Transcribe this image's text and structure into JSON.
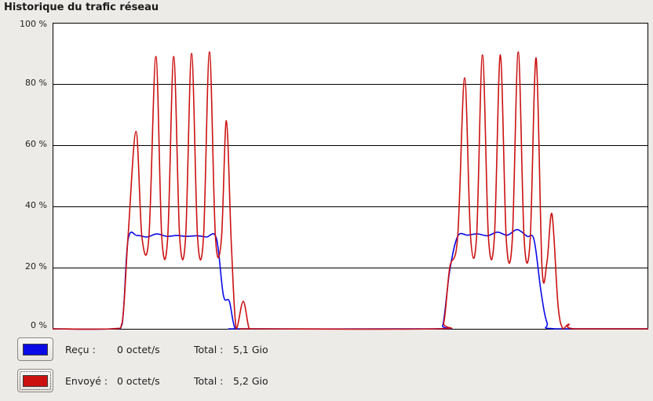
{
  "section_title": "Historique du trafic réseau",
  "colors": {
    "received": "#0a0ae6",
    "sent": "#cc1111",
    "plot_bg": "#ffffff",
    "grid": "#000000"
  },
  "chart_data": {
    "type": "line",
    "title": "",
    "xlabel": "",
    "ylabel": "",
    "ylim": [
      0,
      100
    ],
    "y_ticks": [
      "100 %",
      "80 %",
      "60 %",
      "40 %",
      "20 %",
      "0 %"
    ],
    "x_range": [
      0,
      60
    ],
    "series": [
      {
        "name": "Reçu",
        "color": "#0a0ae6",
        "values": [
          [
            0,
            0
          ],
          [
            6.0,
            0
          ],
          [
            7.0,
            1.5
          ],
          [
            7.6,
            29
          ],
          [
            8.5,
            30.5
          ],
          [
            9.5,
            30
          ],
          [
            10.5,
            31
          ],
          [
            11.5,
            30.2
          ],
          [
            12.5,
            30.5
          ],
          [
            13.5,
            30.2
          ],
          [
            14.5,
            30.4
          ],
          [
            15.5,
            30
          ],
          [
            16.5,
            29.6
          ],
          [
            17.2,
            11
          ],
          [
            17.8,
            9
          ],
          [
            18.4,
            0
          ],
          [
            19.5,
            0
          ],
          [
            38.6,
            0
          ],
          [
            39.3,
            1
          ],
          [
            40.0,
            19
          ],
          [
            40.8,
            30.2
          ],
          [
            41.8,
            30.6
          ],
          [
            42.8,
            31
          ],
          [
            43.8,
            30.4
          ],
          [
            44.8,
            31.6
          ],
          [
            45.8,
            30.6
          ],
          [
            46.8,
            32.4
          ],
          [
            47.8,
            30.2
          ],
          [
            48.5,
            29
          ],
          [
            49.2,
            12
          ],
          [
            49.8,
            2
          ],
          [
            50.6,
            0
          ],
          [
            60,
            0
          ]
        ]
      },
      {
        "name": "Envoyé",
        "color": "#cc1111",
        "values": [
          [
            0,
            0
          ],
          [
            6.0,
            0
          ],
          [
            7.0,
            2
          ],
          [
            7.6,
            30
          ],
          [
            8.4,
            64.5
          ],
          [
            9.0,
            30
          ],
          [
            9.7,
            30
          ],
          [
            10.4,
            89
          ],
          [
            11.0,
            30
          ],
          [
            11.6,
            30
          ],
          [
            12.2,
            89
          ],
          [
            12.8,
            30
          ],
          [
            13.4,
            30
          ],
          [
            14.0,
            90
          ],
          [
            14.6,
            30
          ],
          [
            15.2,
            30
          ],
          [
            15.8,
            90.5
          ],
          [
            16.4,
            30
          ],
          [
            17.0,
            29
          ],
          [
            17.5,
            68
          ],
          [
            18.0,
            28
          ],
          [
            18.5,
            0
          ],
          [
            19.2,
            9
          ],
          [
            19.8,
            0
          ],
          [
            20.4,
            0
          ],
          [
            38.6,
            0
          ],
          [
            39.4,
            2
          ],
          [
            40.0,
            20
          ],
          [
            40.8,
            30
          ],
          [
            41.5,
            82
          ],
          [
            42.1,
            30
          ],
          [
            42.7,
            30
          ],
          [
            43.3,
            89.5
          ],
          [
            43.9,
            30
          ],
          [
            44.5,
            30
          ],
          [
            45.1,
            89.5
          ],
          [
            45.7,
            29
          ],
          [
            46.3,
            29
          ],
          [
            46.9,
            90.5
          ],
          [
            47.5,
            29
          ],
          [
            48.1,
            29
          ],
          [
            48.7,
            88.5
          ],
          [
            49.3,
            20
          ],
          [
            49.8,
            22
          ],
          [
            50.3,
            37.5
          ],
          [
            50.9,
            8
          ],
          [
            51.4,
            0
          ],
          [
            52.0,
            1.5
          ],
          [
            52.6,
            0
          ],
          [
            60,
            0
          ]
        ]
      }
    ]
  },
  "legend": {
    "received": {
      "label": "Reçu :",
      "rate": "0 octet/s",
      "total_label": "Total :",
      "total_value": "5,1 Gio"
    },
    "sent": {
      "label": "Envoyé :",
      "rate": "0 octet/s",
      "total_label": "Total :",
      "total_value": "5,2 Gio"
    }
  }
}
